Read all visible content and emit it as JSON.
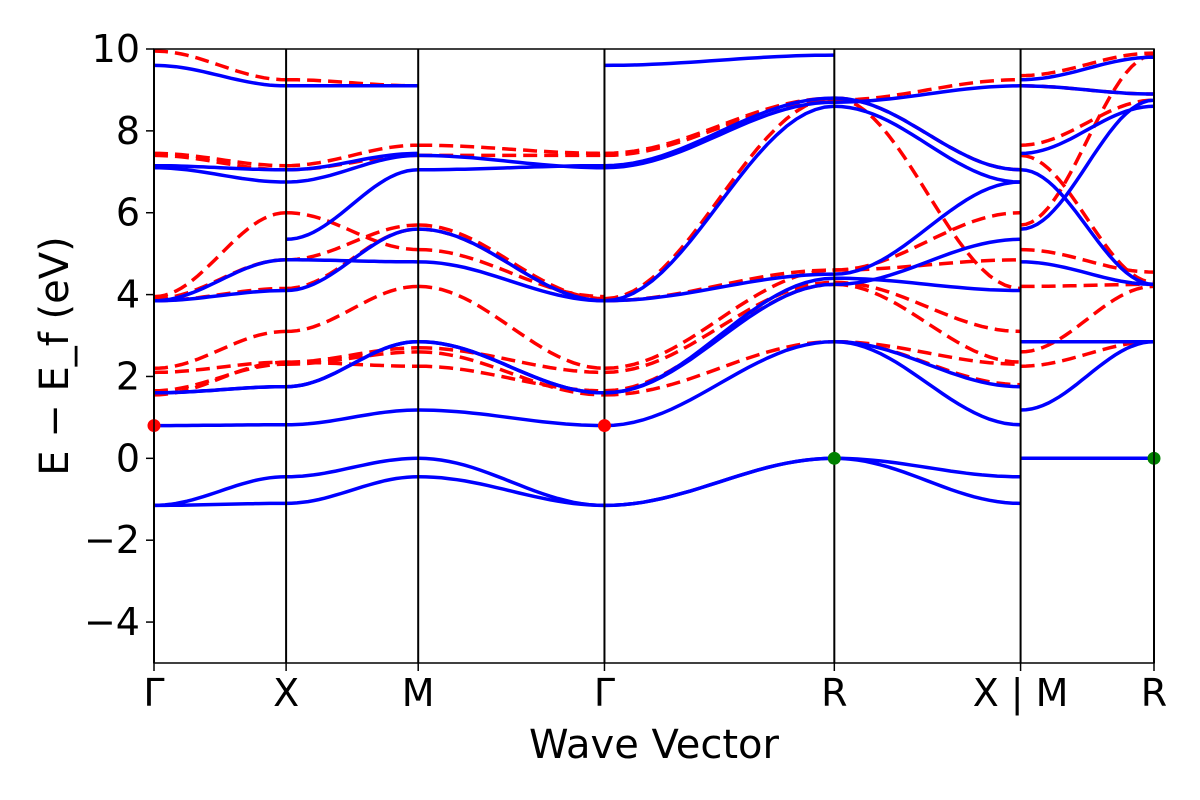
{
  "chart_data": {
    "type": "line",
    "title": "",
    "xlabel": "Wave Vector",
    "ylabel": "E − E_f (eV)",
    "ylim": [
      -5,
      10
    ],
    "yticks": [
      {
        "v": 10,
        "label": "10"
      },
      {
        "v": 8,
        "label": "8"
      },
      {
        "v": 6,
        "label": "6"
      },
      {
        "v": 4,
        "label": "4"
      },
      {
        "v": 2,
        "label": "2"
      },
      {
        "v": 0,
        "label": "0"
      },
      {
        "v": -2,
        "label": "−2"
      },
      {
        "v": -4,
        "label": "−4"
      }
    ],
    "xlim": [
      0,
      7.57
    ],
    "kpoints": [
      {
        "x": 0,
        "label": "Γ"
      },
      {
        "x": 1.0,
        "label": "X"
      },
      {
        "x": 2.0,
        "label": "M"
      },
      {
        "x": 3.41,
        "label": "Γ"
      },
      {
        "x": 5.15,
        "label": "R"
      },
      {
        "x": 6.56,
        "label": "X | M"
      },
      {
        "x": 7.57,
        "label": "R"
      }
    ],
    "colors": {
      "solid": "#0000ff",
      "dashed": "#ff0000",
      "cbm": "#ff0000",
      "vbm": "#008000"
    },
    "segments": [
      {
        "x0": 0,
        "x1": 1.0,
        "solid": [
          [
            -1.15,
            -1.1
          ],
          [
            -1.15,
            -0.45
          ],
          [
            0.8,
            0.82
          ],
          [
            1.6,
            1.75
          ],
          [
            1.6,
            1.75
          ],
          [
            3.85,
            4.1
          ],
          [
            3.85,
            4.85
          ],
          [
            7.1,
            6.75
          ],
          [
            7.15,
            7.05
          ],
          [
            9.6,
            9.1
          ]
        ],
        "dashed": [
          [
            1.55,
            2.35
          ],
          [
            1.65,
            2.3
          ],
          [
            2.1,
            2.35
          ],
          [
            2.2,
            3.1
          ],
          [
            3.85,
            4.15
          ],
          [
            3.9,
            4.85
          ],
          [
            3.95,
            6.0
          ],
          [
            7.4,
            7.05
          ],
          [
            7.45,
            7.15
          ],
          [
            9.95,
            9.25
          ]
        ]
      },
      {
        "x0": 1.0,
        "x1": 2.0,
        "solid": [
          [
            -1.1,
            -0.45
          ],
          [
            -0.45,
            0.0
          ],
          [
            0.82,
            1.18
          ],
          [
            1.75,
            2.85
          ],
          [
            1.75,
            2.85
          ],
          [
            4.1,
            5.6
          ],
          [
            4.85,
            4.8
          ],
          [
            5.35,
            7.05
          ],
          [
            6.75,
            7.4
          ],
          [
            7.05,
            7.45
          ],
          [
            9.1,
            9.1
          ]
        ],
        "dashed": [
          [
            2.3,
            2.6
          ],
          [
            2.35,
            2.25
          ],
          [
            2.35,
            2.7
          ],
          [
            3.1,
            4.2
          ],
          [
            4.15,
            5.6
          ],
          [
            4.85,
            5.7
          ],
          [
            6.0,
            5.1
          ],
          [
            7.05,
            7.4
          ],
          [
            7.15,
            7.65
          ],
          [
            9.25,
            9.1
          ]
        ]
      },
      {
        "x0": 2.0,
        "x1": 3.41,
        "solid": [
          [
            -0.45,
            -1.15
          ],
          [
            0.0,
            -1.15
          ],
          [
            1.18,
            0.8
          ],
          [
            2.85,
            1.6
          ],
          [
            2.85,
            1.6
          ],
          [
            5.6,
            3.85
          ],
          [
            4.8,
            3.85
          ],
          [
            7.05,
            7.15
          ],
          [
            7.4,
            7.1
          ]
        ],
        "dashed": [
          [
            2.6,
            1.55
          ],
          [
            2.25,
            1.65
          ],
          [
            2.7,
            2.1
          ],
          [
            4.2,
            2.2
          ],
          [
            5.6,
            3.85
          ],
          [
            5.7,
            3.9
          ],
          [
            5.1,
            3.95
          ],
          [
            7.4,
            7.4
          ],
          [
            7.65,
            7.45
          ]
        ]
      },
      {
        "x0": 3.41,
        "x1": 5.15,
        "solid": [
          [
            -1.15,
            0.0
          ],
          [
            -1.15,
            0.0
          ],
          [
            0.8,
            2.85
          ],
          [
            1.6,
            4.25
          ],
          [
            1.6,
            4.4
          ],
          [
            3.85,
            4.5
          ],
          [
            3.85,
            8.6
          ],
          [
            7.1,
            8.7
          ],
          [
            7.15,
            8.8
          ],
          [
            9.6,
            9.85
          ]
        ],
        "dashed": [
          [
            1.55,
            2.85
          ],
          [
            1.65,
            4.25
          ],
          [
            2.1,
            4.3
          ],
          [
            2.2,
            4.6
          ],
          [
            3.85,
            4.6
          ],
          [
            3.9,
            8.8
          ],
          [
            7.4,
            8.75
          ],
          [
            7.45,
            8.8
          ]
        ]
      },
      {
        "x0": 5.15,
        "x1": 6.56,
        "solid": [
          [
            0.0,
            -0.45
          ],
          [
            0.0,
            -1.1
          ],
          [
            2.85,
            0.82
          ],
          [
            2.85,
            1.75
          ],
          [
            4.25,
            5.35
          ],
          [
            4.4,
            4.1
          ],
          [
            4.5,
            6.75
          ],
          [
            8.6,
            6.75
          ],
          [
            8.7,
            9.1
          ],
          [
            8.8,
            7.05
          ]
        ],
        "dashed": [
          [
            2.85,
            2.3
          ],
          [
            2.85,
            1.8
          ],
          [
            4.25,
            2.35
          ],
          [
            4.3,
            3.1
          ],
          [
            4.6,
            6.0
          ],
          [
            4.6,
            4.85
          ],
          [
            8.8,
            4.15
          ],
          [
            8.75,
            9.25
          ],
          [
            8.8,
            7.05
          ]
        ]
      },
      {
        "x0": 6.56,
        "x1": 7.57,
        "solid": [
          [
            0.0,
            0.0
          ],
          [
            1.18,
            2.85
          ],
          [
            2.85,
            2.85
          ],
          [
            4.8,
            4.25
          ],
          [
            5.6,
            8.75
          ],
          [
            7.05,
            4.25
          ],
          [
            7.45,
            8.6
          ],
          [
            9.1,
            8.9
          ],
          [
            9.25,
            9.8
          ]
        ],
        "dashed": [
          [
            2.25,
            2.85
          ],
          [
            2.6,
            4.2
          ],
          [
            4.2,
            4.25
          ],
          [
            5.1,
            4.55
          ],
          [
            5.7,
            9.85
          ],
          [
            7.4,
            4.3
          ],
          [
            7.65,
            8.75
          ],
          [
            9.1,
            8.9
          ],
          [
            9.35,
            9.9
          ]
        ]
      }
    ],
    "markers": [
      {
        "x": 0,
        "y": 0.8,
        "kind": "cbm"
      },
      {
        "x": 3.41,
        "y": 0.8,
        "kind": "cbm"
      },
      {
        "x": 5.15,
        "y": 0.0,
        "kind": "vbm"
      },
      {
        "x": 7.57,
        "y": 0.0,
        "kind": "vbm"
      }
    ]
  }
}
